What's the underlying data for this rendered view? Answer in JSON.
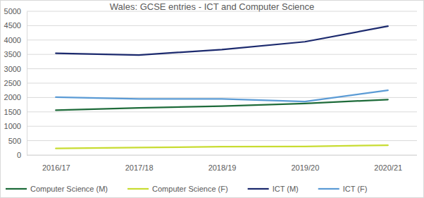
{
  "chart_data": {
    "type": "line",
    "title": "Wales: GCSE entries - ICT and Computer Science",
    "categories": [
      "2016/17",
      "2017/18",
      "2018/19",
      "2019/20",
      "2020/21"
    ],
    "series": [
      {
        "name": "Computer Science (M)",
        "color": "#1e6b3a",
        "values": [
          1560,
          1640,
          1700,
          1790,
          1930
        ]
      },
      {
        "name": "Computer Science (F)",
        "color": "#c8dc32",
        "values": [
          230,
          260,
          290,
          300,
          340
        ]
      },
      {
        "name": "ICT (M)",
        "color": "#1c2a6e",
        "values": [
          3540,
          3480,
          3670,
          3940,
          4480
        ]
      },
      {
        "name": "ICT (F)",
        "color": "#5b9bd5",
        "values": [
          2010,
          1950,
          1950,
          1860,
          2250
        ]
      }
    ],
    "ylim": [
      0,
      5000
    ],
    "yticks": [
      0,
      500,
      1000,
      1500,
      2000,
      2500,
      3000,
      3500,
      4000,
      4500,
      5000
    ],
    "grid": true,
    "legend": "bottom"
  }
}
